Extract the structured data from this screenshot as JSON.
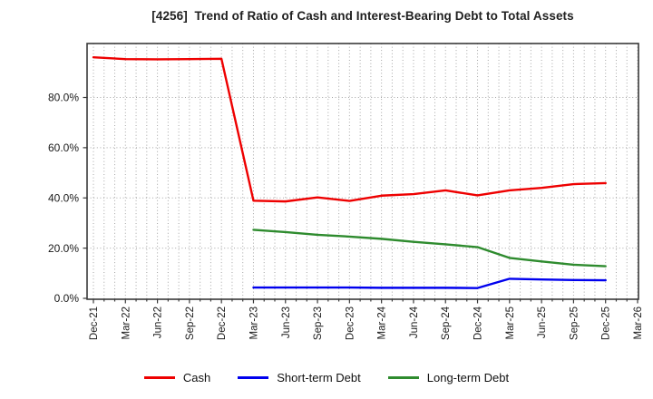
{
  "chart_data": {
    "type": "line",
    "title": "[4256]  Trend of Ratio of Cash and Interest-Bearing Debt to Total Assets",
    "categories": [
      "Dec-21",
      "Mar-22",
      "Jun-22",
      "Sep-22",
      "Dec-22",
      "Mar-23",
      "Jun-23",
      "Sep-23",
      "Dec-23",
      "Mar-24",
      "Jun-24",
      "Sep-24",
      "Dec-24",
      "Mar-25",
      "Jun-25",
      "Sep-25",
      "Dec-25",
      "Mar-26"
    ],
    "series": [
      {
        "name": "Cash",
        "color": "#ee0000",
        "start_index": 0,
        "values": [
          96.0,
          95.3,
          95.2,
          95.3,
          95.4,
          38.9,
          38.6,
          40.2,
          38.8,
          40.9,
          41.5,
          43.0,
          41.0,
          43.0,
          44.0,
          45.5,
          45.9
        ]
      },
      {
        "name": "Short-term Debt",
        "color": "#0000ee",
        "start_index": 5,
        "values": [
          4.3,
          4.3,
          4.3,
          4.3,
          4.2,
          4.2,
          4.2,
          4.1,
          7.8,
          7.5,
          7.3,
          7.2
        ]
      },
      {
        "name": "Long-term Debt",
        "color": "#2e8b2e",
        "start_index": 5,
        "values": [
          27.3,
          26.4,
          25.3,
          24.6,
          23.7,
          22.5,
          21.5,
          20.4,
          16.1,
          14.7,
          13.4,
          12.8
        ]
      }
    ],
    "xlabel": "",
    "ylabel": "",
    "y_axis": {
      "tick_values": [
        0,
        20,
        40,
        60,
        80
      ],
      "tick_labels": [
        "0.0%",
        "20.0%",
        "40.0%",
        "60.0%",
        "80.0%"
      ],
      "range": [
        0,
        101.5
      ]
    },
    "x_axis": {
      "minor_divisions": 3
    },
    "grid": {
      "on": true,
      "style": "dotted",
      "color": "#a6a6a6"
    },
    "frame_color": "#3a3a3a",
    "legend": {
      "position": "bottom",
      "entries": [
        "Cash",
        "Short-term Debt",
        "Long-term Debt"
      ]
    }
  }
}
